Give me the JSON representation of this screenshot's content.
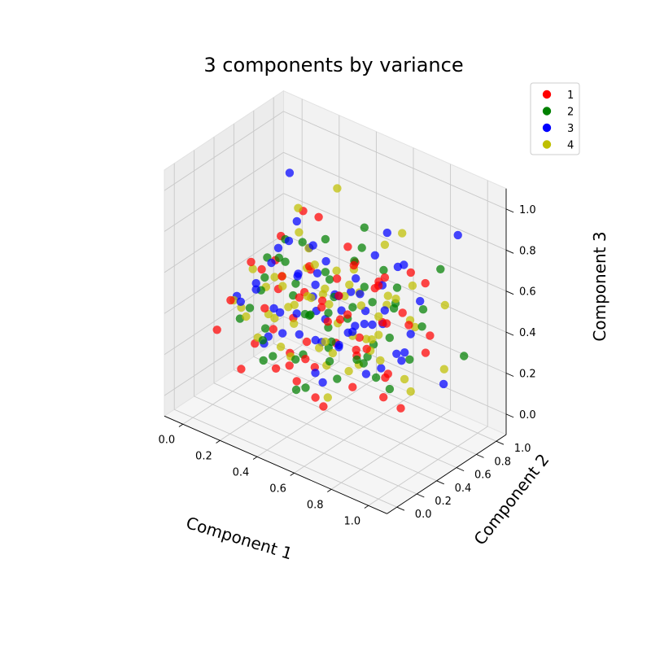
{
  "chart_data": {
    "type": "scatter",
    "projection": "3d",
    "title": "3 components by variance",
    "xlabel": "Component 1",
    "ylabel": "Component 2",
    "zlabel": "Component 3",
    "xlim": [
      0,
      1
    ],
    "ylim": [
      0,
      1
    ],
    "zlim": [
      0,
      1
    ],
    "xticks": [
      "0.0",
      "0.2",
      "0.4",
      "0.6",
      "0.8",
      "1.0"
    ],
    "yticks": [
      "0.0",
      "0.2",
      "0.4",
      "0.6",
      "0.8",
      "1.0"
    ],
    "zticks": [
      "0.0",
      "0.2",
      "0.4",
      "0.6",
      "0.8",
      "1.0"
    ],
    "grid": true,
    "legend_position": "top-right",
    "series": [
      {
        "name": "1",
        "color": "#ff0000",
        "points": [
          [
            0.1,
            0.7,
            0.6
          ],
          [
            0.3,
            0.55,
            0.85
          ],
          [
            0.52,
            0.48,
            0.63
          ],
          [
            0.84,
            0.3,
            0.78
          ],
          [
            0.4,
            0.4,
            0.3
          ],
          [
            0.62,
            0.2,
            0.55
          ],
          [
            0.9,
            0.66,
            0.7
          ],
          [
            0.2,
            0.35,
            0.4
          ],
          [
            0.75,
            0.55,
            0.48
          ],
          [
            0.05,
            0.15,
            0.3
          ],
          [
            0.45,
            0.6,
            0.25
          ],
          [
            0.33,
            0.22,
            0.2
          ],
          [
            0.58,
            0.75,
            0.52
          ],
          [
            0.68,
            0.38,
            0.35
          ],
          [
            0.25,
            0.8,
            0.72
          ],
          [
            0.8,
            0.15,
            0.5
          ],
          [
            0.5,
            0.3,
            0.1
          ],
          [
            0.15,
            0.55,
            0.55
          ],
          [
            0.72,
            0.62,
            0.2
          ],
          [
            0.38,
            0.1,
            0.45
          ],
          [
            0.95,
            0.4,
            0.6
          ],
          [
            0.6,
            0.5,
            0.72
          ],
          [
            0.28,
            0.45,
            0.12
          ],
          [
            0.55,
            0.2,
            0.3
          ],
          [
            0.42,
            0.85,
            0.55
          ],
          [
            0.85,
            0.8,
            0.38
          ],
          [
            0.18,
            0.25,
            0.65
          ],
          [
            0.65,
            0.1,
            0.18
          ],
          [
            0.35,
            0.65,
            0.4
          ],
          [
            0.48,
            0.4,
            0.5
          ],
          [
            0.78,
            0.48,
            0.25
          ],
          [
            0.22,
            0.6,
            0.28
          ],
          [
            0.6,
            0.35,
            0.62
          ],
          [
            0.92,
            0.2,
            0.3
          ],
          [
            0.12,
            0.4,
            0.18
          ],
          [
            0.45,
            0.72,
            0.68
          ],
          [
            0.7,
            0.25,
            0.6
          ],
          [
            0.3,
            0.3,
            0.55
          ],
          [
            0.55,
            0.65,
            0.3
          ],
          [
            0.05,
            0.6,
            0.45
          ],
          [
            0.82,
            0.58,
            0.55
          ],
          [
            0.4,
            0.15,
            0.7
          ],
          [
            0.62,
            0.45,
            0.15
          ],
          [
            0.26,
            0.7,
            0.5
          ],
          [
            0.5,
            0.55,
            0.4
          ],
          [
            0.75,
            0.35,
            0.42
          ],
          [
            0.15,
            0.1,
            0.5
          ],
          [
            0.88,
            0.45,
            0.15
          ],
          [
            0.36,
            0.5,
            0.62
          ],
          [
            0.58,
            0.05,
            0.4
          ],
          [
            0.2,
            0.75,
            0.35
          ],
          [
            0.66,
            0.7,
            0.62
          ],
          [
            0.44,
            0.25,
            0.58
          ],
          [
            0.7,
            0.6,
            0.45
          ],
          [
            0.32,
            0.38,
            0.22
          ],
          [
            0.52,
            0.9,
            0.48
          ],
          [
            0.96,
            0.55,
            0.42
          ],
          [
            0.1,
            0.3,
            0.08
          ],
          [
            0.48,
            0.15,
            0.22
          ],
          [
            0.8,
            0.7,
            0.7
          ]
        ]
      },
      {
        "name": "2",
        "color": "#008000",
        "points": [
          [
            0.08,
            0.6,
            0.52
          ],
          [
            0.35,
            0.45,
            0.75
          ],
          [
            0.55,
            0.7,
            0.82
          ],
          [
            0.88,
            0.85,
            0.7
          ],
          [
            0.98,
            0.9,
            0.3
          ],
          [
            0.2,
            0.2,
            0.45
          ],
          [
            0.62,
            0.4,
            0.5
          ],
          [
            0.42,
            0.55,
            0.6
          ],
          [
            0.75,
            0.25,
            0.4
          ],
          [
            0.28,
            0.65,
            0.3
          ],
          [
            0.5,
            0.1,
            0.35
          ],
          [
            0.15,
            0.45,
            0.25
          ],
          [
            0.68,
            0.55,
            0.35
          ],
          [
            0.38,
            0.3,
            0.55
          ],
          [
            0.82,
            0.45,
            0.22
          ],
          [
            0.6,
            0.8,
            0.6
          ],
          [
            0.25,
            0.4,
            0.65
          ],
          [
            0.45,
            0.2,
            0.15
          ],
          [
            0.72,
            0.68,
            0.5
          ],
          [
            0.12,
            0.25,
            0.35
          ],
          [
            0.55,
            0.35,
            0.28
          ],
          [
            0.9,
            0.3,
            0.55
          ],
          [
            0.32,
            0.78,
            0.45
          ],
          [
            0.48,
            0.5,
            0.3
          ],
          [
            0.65,
            0.15,
            0.62
          ],
          [
            0.18,
            0.7,
            0.4
          ],
          [
            0.78,
            0.6,
            0.65
          ],
          [
            0.4,
            0.62,
            0.2
          ],
          [
            0.58,
            0.28,
            0.48
          ],
          [
            0.3,
            0.15,
            0.25
          ],
          [
            0.85,
            0.72,
            0.45
          ],
          [
            0.22,
            0.52,
            0.58
          ],
          [
            0.7,
            0.42,
            0.68
          ],
          [
            0.46,
            0.75,
            0.38
          ],
          [
            0.35,
            0.05,
            0.4
          ],
          [
            0.62,
            0.6,
            0.25
          ],
          [
            0.1,
            0.5,
            0.4
          ],
          [
            0.52,
            0.45,
            0.55
          ],
          [
            0.8,
            0.35,
            0.3
          ],
          [
            0.26,
            0.32,
            0.2
          ],
          [
            0.44,
            0.88,
            0.62
          ],
          [
            0.66,
            0.22,
            0.28
          ],
          [
            0.15,
            0.65,
            0.62
          ],
          [
            0.92,
            0.6,
            0.6
          ],
          [
            0.38,
            0.42,
            0.42
          ],
          [
            0.56,
            0.58,
            0.7
          ],
          [
            0.74,
            0.8,
            0.22
          ],
          [
            0.3,
            0.55,
            0.15
          ],
          [
            0.5,
            0.25,
            0.52
          ],
          [
            0.84,
            0.15,
            0.45
          ],
          [
            0.2,
            0.35,
            0.55
          ],
          [
            0.6,
            0.92,
            0.4
          ],
          [
            0.42,
            0.35,
            0.1
          ],
          [
            0.7,
            0.5,
            0.58
          ],
          [
            0.34,
            0.7,
            0.68
          ]
        ]
      },
      {
        "name": "3",
        "color": "#0000ff",
        "points": [
          [
            0.12,
            0.75,
            0.9
          ],
          [
            0.4,
            0.3,
            0.92
          ],
          [
            0.78,
            0.5,
            0.95
          ],
          [
            0.92,
            0.95,
            0.85
          ],
          [
            0.65,
            0.62,
            0.75
          ],
          [
            0.25,
            0.5,
            0.7
          ],
          [
            0.5,
            0.4,
            0.45
          ],
          [
            0.35,
            0.6,
            0.55
          ],
          [
            0.7,
            0.3,
            0.5
          ],
          [
            0.18,
            0.3,
            0.5
          ],
          [
            0.58,
            0.55,
            0.4
          ],
          [
            0.42,
            0.45,
            0.3
          ],
          [
            0.82,
            0.4,
            0.62
          ],
          [
            0.3,
            0.2,
            0.35
          ],
          [
            0.62,
            0.75,
            0.55
          ],
          [
            0.22,
            0.65,
            0.48
          ],
          [
            0.48,
            0.15,
            0.55
          ],
          [
            0.75,
            0.65,
            0.3
          ],
          [
            0.1,
            0.45,
            0.45
          ],
          [
            0.55,
            0.28,
            0.2
          ],
          [
            0.88,
            0.55,
            0.48
          ],
          [
            0.38,
            0.72,
            0.42
          ],
          [
            0.66,
            0.45,
            0.62
          ],
          [
            0.28,
            0.38,
            0.3
          ],
          [
            0.52,
            0.62,
            0.52
          ],
          [
            0.8,
            0.25,
            0.35
          ],
          [
            0.15,
            0.58,
            0.6
          ],
          [
            0.45,
            0.5,
            0.68
          ],
          [
            0.72,
            0.78,
            0.68
          ],
          [
            0.32,
            0.28,
            0.45
          ],
          [
            0.6,
            0.35,
            0.38
          ],
          [
            0.2,
            0.8,
            0.55
          ],
          [
            0.85,
            0.7,
            0.58
          ],
          [
            0.4,
            0.55,
            0.25
          ],
          [
            0.68,
            0.2,
            0.45
          ],
          [
            0.05,
            0.35,
            0.4
          ],
          [
            0.55,
            0.7,
            0.35
          ],
          [
            0.35,
            0.4,
            0.6
          ],
          [
            0.78,
            0.35,
            0.55
          ],
          [
            0.25,
            0.25,
            0.28
          ],
          [
            0.62,
            0.58,
            0.48
          ],
          [
            0.45,
            0.8,
            0.5
          ],
          [
            0.9,
            0.42,
            0.4
          ],
          [
            0.18,
            0.48,
            0.35
          ],
          [
            0.5,
            0.3,
            0.65
          ],
          [
            0.72,
            0.55,
            0.25
          ],
          [
            0.3,
            0.65,
            0.65
          ],
          [
            0.58,
            0.15,
            0.3
          ],
          [
            0.95,
            0.75,
            0.2
          ],
          [
            0.38,
            0.5,
            0.48
          ],
          [
            0.65,
            0.85,
            0.62
          ],
          [
            0.22,
            0.38,
            0.62
          ],
          [
            0.48,
            0.6,
            0.42
          ],
          [
            0.82,
            0.6,
            0.35
          ],
          [
            0.14,
            0.22,
            0.45
          ],
          [
            0.56,
            0.42,
            0.58
          ],
          [
            0.74,
            0.18,
            0.55
          ],
          [
            0.28,
            0.72,
            0.3
          ],
          [
            0.44,
            0.25,
            0.4
          ],
          [
            0.66,
            0.68,
            0.4
          ]
        ]
      },
      {
        "name": "4",
        "color": "#bfbf00",
        "points": [
          [
            0.02,
            0.45,
            0.3
          ],
          [
            0.06,
            0.3,
            0.4
          ],
          [
            0.1,
            0.55,
            0.4
          ],
          [
            0.35,
            0.8,
            0.9
          ],
          [
            0.3,
            0.5,
            0.88
          ],
          [
            0.55,
            0.5,
            0.55
          ],
          [
            0.7,
            0.8,
            0.82
          ],
          [
            0.85,
            0.6,
            0.52
          ],
          [
            0.98,
            0.7,
            0.3
          ],
          [
            0.2,
            0.45,
            0.52
          ],
          [
            0.45,
            0.35,
            0.55
          ],
          [
            0.62,
            0.45,
            0.4
          ],
          [
            0.38,
            0.62,
            0.48
          ],
          [
            0.75,
            0.4,
            0.45
          ],
          [
            0.28,
            0.3,
            0.4
          ],
          [
            0.52,
            0.65,
            0.62
          ],
          [
            0.15,
            0.62,
            0.45
          ],
          [
            0.68,
            0.3,
            0.3
          ],
          [
            0.42,
            0.2,
            0.3
          ],
          [
            0.8,
            0.55,
            0.62
          ],
          [
            0.25,
            0.7,
            0.6
          ],
          [
            0.58,
            0.25,
            0.42
          ],
          [
            0.9,
            0.45,
            0.3
          ],
          [
            0.32,
            0.42,
            0.35
          ],
          [
            0.48,
            0.78,
            0.45
          ],
          [
            0.72,
            0.62,
            0.58
          ],
          [
            0.12,
            0.38,
            0.55
          ],
          [
            0.6,
            0.55,
            0.22
          ],
          [
            0.4,
            0.48,
            0.65
          ],
          [
            0.85,
            0.3,
            0.42
          ],
          [
            0.22,
            0.55,
            0.35
          ],
          [
            0.66,
            0.72,
            0.48
          ],
          [
            0.35,
            0.25,
            0.6
          ],
          [
            0.54,
            0.4,
            0.3
          ],
          [
            0.78,
            0.78,
            0.4
          ],
          [
            0.18,
            0.2,
            0.4
          ],
          [
            0.46,
            0.6,
            0.35
          ],
          [
            0.64,
            0.38,
            0.68
          ],
          [
            0.3,
            0.75,
            0.38
          ],
          [
            0.88,
            0.55,
            0.2
          ],
          [
            0.5,
            0.22,
            0.62
          ],
          [
            0.26,
            0.4,
            0.22
          ],
          [
            0.7,
            0.48,
            0.35
          ],
          [
            0.4,
            0.7,
            0.55
          ],
          [
            0.58,
            0.85,
            0.7
          ],
          [
            0.14,
            0.5,
            0.3
          ],
          [
            0.82,
            0.68,
            0.65
          ],
          [
            0.36,
            0.35,
            0.48
          ],
          [
            0.62,
            0.2,
            0.18
          ],
          [
            0.44,
            0.55,
            0.45
          ],
          [
            0.76,
            0.45,
            0.55
          ],
          [
            0.24,
            0.62,
            0.7
          ],
          [
            0.52,
            0.3,
            0.35
          ],
          [
            0.68,
            0.6,
            0.38
          ],
          [
            0.32,
            0.55,
            0.58
          ],
          [
            0.56,
            0.7,
            0.28
          ],
          [
            0.92,
            0.82,
            0.55
          ],
          [
            0.2,
            0.28,
            0.28
          ],
          [
            0.48,
            0.45,
            0.2
          ],
          [
            0.72,
            0.35,
            0.62
          ]
        ]
      }
    ]
  }
}
